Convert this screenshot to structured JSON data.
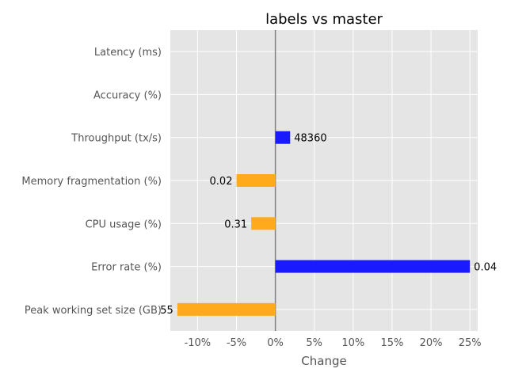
{
  "chart_data": {
    "type": "bar",
    "orientation": "horizontal",
    "title": "labels vs master",
    "xlabel": "Change",
    "ylabel": "",
    "xlim": [
      -13.5,
      26
    ],
    "x_ticks": [
      -10,
      -5,
      0,
      5,
      10,
      15,
      20,
      25
    ],
    "x_tick_labels": [
      "-10%",
      "-5%",
      "0%",
      "5%",
      "10%",
      "15%",
      "20%",
      "25%"
    ],
    "grid": true,
    "colors": {
      "positive": "#1a1aff",
      "negative": "#ffaa1a",
      "zero_line": "#808080",
      "background": "#e5e5e5"
    },
    "categories": [
      "Latency (ms)",
      "Accuracy (%)",
      "Throughput (tx/s)",
      "Memory fragmentation (%)",
      "CPU usage (%)",
      "Error rate (%)",
      "Peak working set size (GB)"
    ],
    "values": [
      0,
      0,
      1.9,
      -5,
      -3.1,
      25,
      -12.6
    ],
    "labels": [
      "",
      "",
      "48360",
      "0.02",
      "0.31",
      "0.04",
      "55"
    ]
  }
}
